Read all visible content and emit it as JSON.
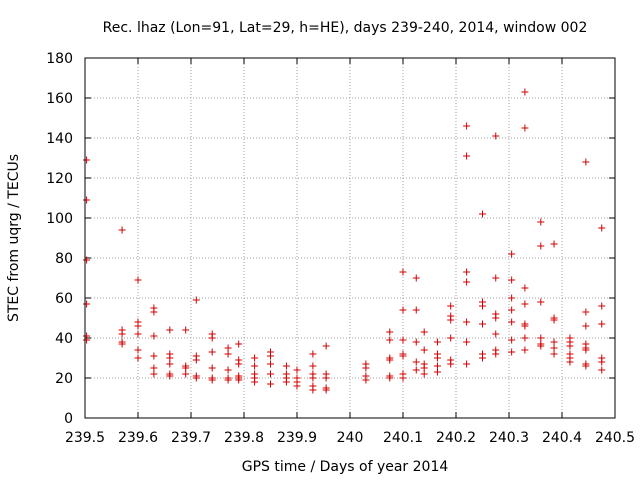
{
  "chart_data": {
    "type": "scatter",
    "title": "Rec. lhaz (Lon=91, Lat=29, h=HE), days 239-240, 2014, window 002",
    "xlabel": "GPS time / Days of year 2014",
    "ylabel": "STEC from uqrg / TECUs",
    "xlim": [
      239.5,
      240.5
    ],
    "ylim": [
      0,
      180
    ],
    "xticks": [
      "239.5",
      "239.6",
      "239.7",
      "239.8",
      "239.9",
      "240",
      "240.1",
      "240.2",
      "240.3",
      "240.4",
      "240.5"
    ],
    "yticks": [
      "0",
      "20",
      "40",
      "60",
      "80",
      "100",
      "120",
      "140",
      "160",
      "180"
    ],
    "grid": true,
    "marker": "+",
    "color": "#d00000",
    "points": [
      [
        239.503,
        129
      ],
      [
        239.503,
        109
      ],
      [
        239.503,
        79
      ],
      [
        239.503,
        57
      ],
      [
        239.503,
        41
      ],
      [
        239.503,
        39
      ],
      [
        239.57,
        94
      ],
      [
        239.57,
        44
      ],
      [
        239.57,
        42
      ],
      [
        239.57,
        38
      ],
      [
        239.57,
        37
      ],
      [
        239.6,
        69
      ],
      [
        239.6,
        48
      ],
      [
        239.6,
        46
      ],
      [
        239.6,
        42
      ],
      [
        239.6,
        34
      ],
      [
        239.6,
        30
      ],
      [
        239.63,
        55
      ],
      [
        239.63,
        53
      ],
      [
        239.63,
        41
      ],
      [
        239.63,
        31
      ],
      [
        239.63,
        25
      ],
      [
        239.63,
        22
      ],
      [
        239.66,
        44
      ],
      [
        239.66,
        32
      ],
      [
        239.66,
        30
      ],
      [
        239.66,
        27
      ],
      [
        239.66,
        22
      ],
      [
        239.66,
        21
      ],
      [
        239.69,
        44
      ],
      [
        239.69,
        26
      ],
      [
        239.69,
        25
      ],
      [
        239.69,
        22
      ],
      [
        239.71,
        59
      ],
      [
        239.71,
        31
      ],
      [
        239.71,
        29
      ],
      [
        239.71,
        21
      ],
      [
        239.71,
        20
      ],
      [
        239.74,
        42
      ],
      [
        239.74,
        40
      ],
      [
        239.74,
        33
      ],
      [
        239.74,
        25
      ],
      [
        239.74,
        20
      ],
      [
        239.74,
        19
      ],
      [
        239.77,
        35
      ],
      [
        239.77,
        32
      ],
      [
        239.77,
        24
      ],
      [
        239.77,
        20
      ],
      [
        239.77,
        19
      ],
      [
        239.79,
        37
      ],
      [
        239.79,
        29
      ],
      [
        239.79,
        27
      ],
      [
        239.79,
        21
      ],
      [
        239.79,
        20
      ],
      [
        239.79,
        19
      ],
      [
        239.82,
        30
      ],
      [
        239.82,
        26
      ],
      [
        239.82,
        22
      ],
      [
        239.82,
        20
      ],
      [
        239.82,
        18
      ],
      [
        239.85,
        33
      ],
      [
        239.85,
        31
      ],
      [
        239.85,
        27
      ],
      [
        239.85,
        22
      ],
      [
        239.85,
        17
      ],
      [
        239.88,
        26
      ],
      [
        239.88,
        22
      ],
      [
        239.88,
        20
      ],
      [
        239.88,
        18
      ],
      [
        239.9,
        24
      ],
      [
        239.9,
        20
      ],
      [
        239.9,
        18
      ],
      [
        239.9,
        16
      ],
      [
        239.93,
        32
      ],
      [
        239.93,
        26
      ],
      [
        239.93,
        22
      ],
      [
        239.93,
        20
      ],
      [
        239.93,
        16
      ],
      [
        239.93,
        14
      ],
      [
        239.955,
        36
      ],
      [
        239.955,
        22
      ],
      [
        239.955,
        20
      ],
      [
        239.955,
        15
      ],
      [
        239.955,
        14
      ],
      [
        240.03,
        27
      ],
      [
        240.03,
        25
      ],
      [
        240.03,
        21
      ],
      [
        240.03,
        19
      ],
      [
        240.075,
        43
      ],
      [
        240.075,
        39
      ],
      [
        240.075,
        30
      ],
      [
        240.075,
        29
      ],
      [
        240.075,
        21
      ],
      [
        240.075,
        20
      ],
      [
        240.1,
        73
      ],
      [
        240.1,
        54
      ],
      [
        240.1,
        39
      ],
      [
        240.1,
        32
      ],
      [
        240.1,
        31
      ],
      [
        240.1,
        22
      ],
      [
        240.1,
        20
      ],
      [
        240.125,
        70
      ],
      [
        240.125,
        54
      ],
      [
        240.125,
        38
      ],
      [
        240.125,
        28
      ],
      [
        240.125,
        24
      ],
      [
        240.14,
        43
      ],
      [
        240.14,
        34
      ],
      [
        240.14,
        27
      ],
      [
        240.14,
        25
      ],
      [
        240.14,
        22
      ],
      [
        240.165,
        38
      ],
      [
        240.165,
        32
      ],
      [
        240.165,
        30
      ],
      [
        240.165,
        26
      ],
      [
        240.165,
        23
      ],
      [
        240.19,
        56
      ],
      [
        240.19,
        51
      ],
      [
        240.19,
        49
      ],
      [
        240.19,
        40
      ],
      [
        240.19,
        29
      ],
      [
        240.19,
        27
      ],
      [
        240.22,
        146
      ],
      [
        240.22,
        131
      ],
      [
        240.22,
        73
      ],
      [
        240.22,
        68
      ],
      [
        240.22,
        48
      ],
      [
        240.22,
        38
      ],
      [
        240.22,
        27
      ],
      [
        240.25,
        102
      ],
      [
        240.25,
        58
      ],
      [
        240.25,
        56
      ],
      [
        240.25,
        47
      ],
      [
        240.25,
        32
      ],
      [
        240.25,
        30
      ],
      [
        240.275,
        141
      ],
      [
        240.275,
        70
      ],
      [
        240.275,
        52
      ],
      [
        240.275,
        50
      ],
      [
        240.275,
        42
      ],
      [
        240.275,
        34
      ],
      [
        240.275,
        32
      ],
      [
        240.305,
        82
      ],
      [
        240.305,
        69
      ],
      [
        240.305,
        60
      ],
      [
        240.305,
        54
      ],
      [
        240.305,
        48
      ],
      [
        240.305,
        39
      ],
      [
        240.305,
        33
      ],
      [
        240.33,
        163
      ],
      [
        240.33,
        145
      ],
      [
        240.33,
        65
      ],
      [
        240.33,
        57
      ],
      [
        240.33,
        47
      ],
      [
        240.33,
        46
      ],
      [
        240.33,
        40
      ],
      [
        240.33,
        34
      ],
      [
        240.36,
        98
      ],
      [
        240.36,
        86
      ],
      [
        240.36,
        58
      ],
      [
        240.36,
        40
      ],
      [
        240.36,
        37
      ],
      [
        240.36,
        36
      ],
      [
        240.385,
        87
      ],
      [
        240.385,
        50
      ],
      [
        240.385,
        49
      ],
      [
        240.385,
        38
      ],
      [
        240.385,
        35
      ],
      [
        240.385,
        32
      ],
      [
        240.415,
        40
      ],
      [
        240.415,
        38
      ],
      [
        240.415,
        36
      ],
      [
        240.415,
        32
      ],
      [
        240.415,
        30
      ],
      [
        240.415,
        28
      ],
      [
        240.445,
        128
      ],
      [
        240.445,
        53
      ],
      [
        240.445,
        46
      ],
      [
        240.445,
        37
      ],
      [
        240.445,
        35
      ],
      [
        240.445,
        34
      ],
      [
        240.445,
        27
      ],
      [
        240.445,
        26
      ],
      [
        240.475,
        95
      ],
      [
        240.475,
        56
      ],
      [
        240.475,
        47
      ],
      [
        240.475,
        30
      ],
      [
        240.475,
        28
      ],
      [
        240.475,
        24
      ]
    ]
  }
}
